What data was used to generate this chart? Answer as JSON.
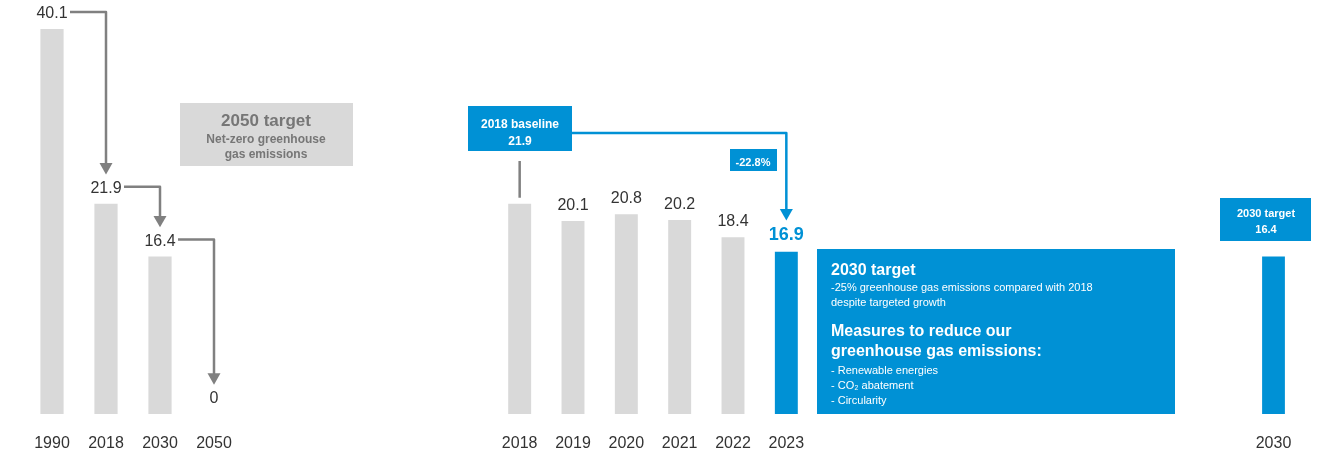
{
  "chart_data": [
    {
      "type": "bar",
      "categories": [
        "1990",
        "2018",
        "2030",
        "2050"
      ],
      "values": [
        40.1,
        21.9,
        16.4,
        0
      ],
      "color": "#d9d9d9",
      "data_labels": true,
      "annotations": [
        "2050 target",
        "Net-zero greenhouse",
        "gas emissions"
      ]
    },
    {
      "type": "bar",
      "categories": [
        "2018",
        "2019",
        "2020",
        "2021",
        "2022",
        "2023"
      ],
      "values": [
        21.9,
        20.1,
        20.8,
        20.2,
        18.4,
        16.9
      ],
      "colors": [
        "#d9d9d9",
        "#d9d9d9",
        "#d9d9d9",
        "#d9d9d9",
        "#d9d9d9",
        "#0091d5"
      ],
      "value_labels": [
        "21.9",
        "20.1",
        "20.8",
        "20.2",
        "18.4",
        "16.9"
      ],
      "annotations": [
        "2018 baseline",
        "-22.8%",
        "2030 target",
        "-25% greenhouse gas emissions compared with 2018",
        "despite targeted growth",
        "Measures to reduce our",
        "greenhouse gas emissions:",
        "- Renewable energies",
        "- CO₂ abatement",
        "- Circularity"
      ]
    },
    {
      "type": "bar",
      "categories": [
        "2030"
      ],
      "values": [
        16.4
      ],
      "color": "#0091d5",
      "data_labels": true,
      "annotations": [
        "2030 target"
      ]
    }
  ]
}
